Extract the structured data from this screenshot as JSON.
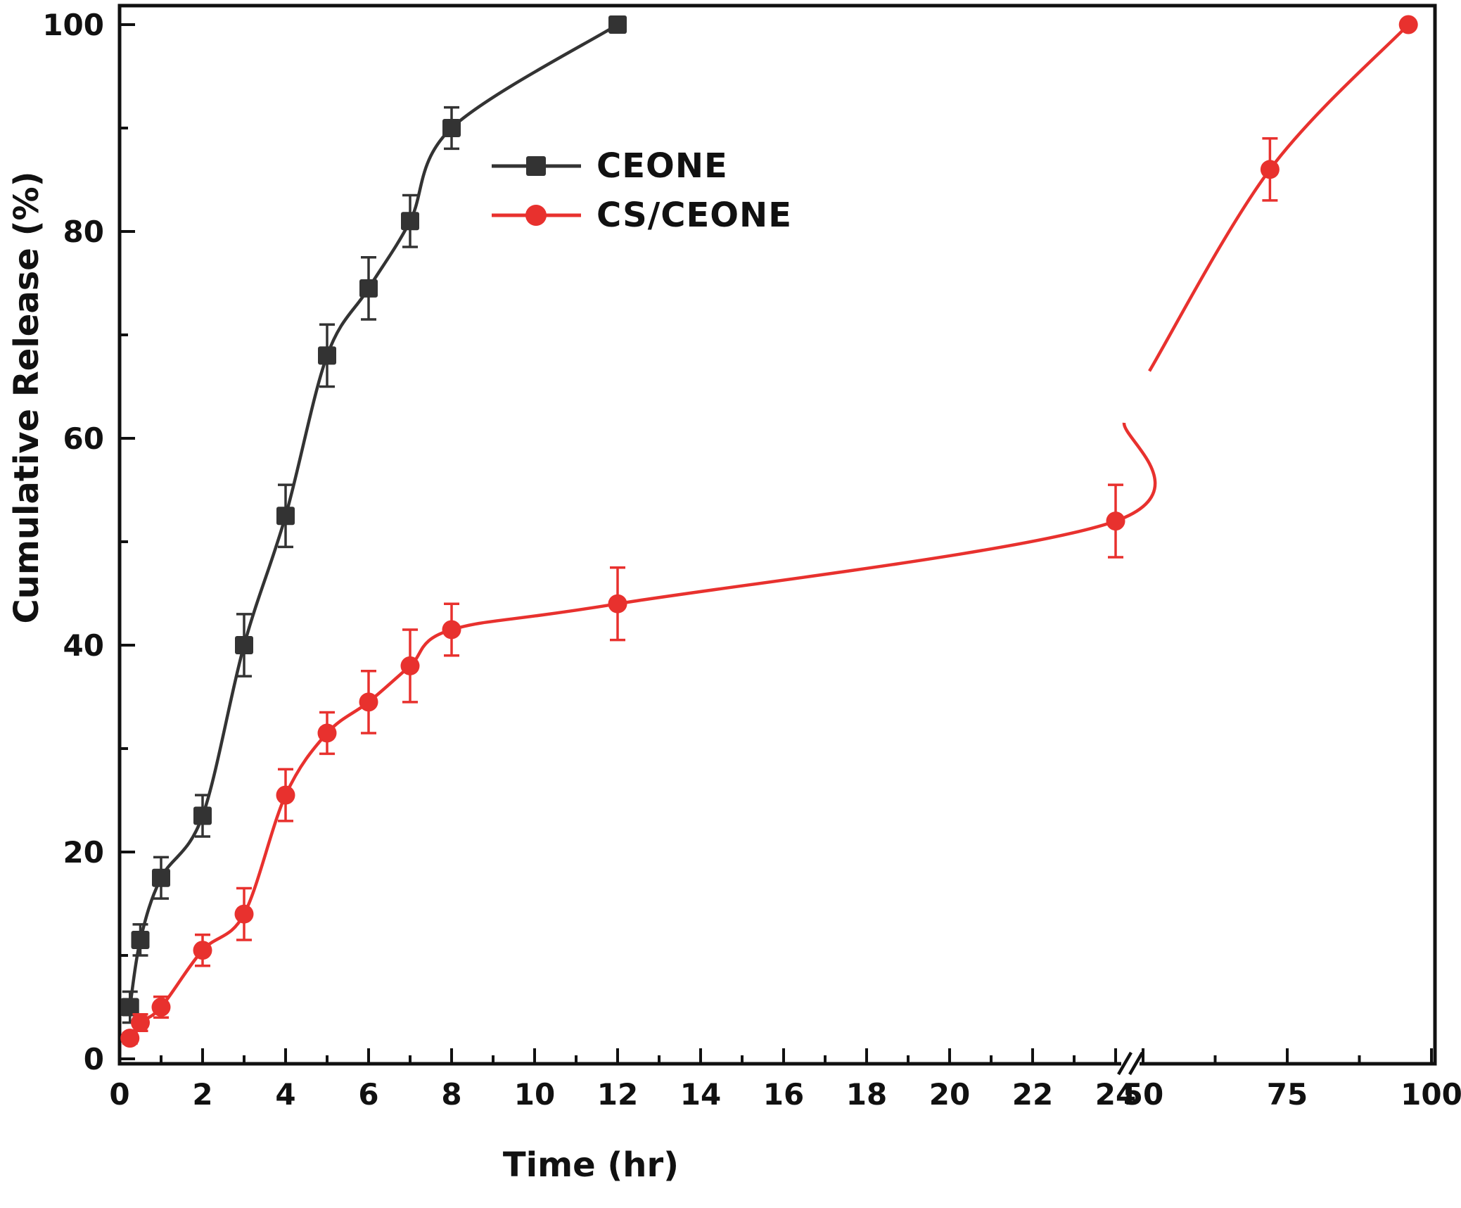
{
  "chart_data": {
    "type": "line",
    "title": "",
    "xlabel": "Time (hr)",
    "ylabel": "Cumulative Release (%)",
    "grid": false,
    "x_axis": {
      "unit": "hr",
      "break_after": 24,
      "segments": [
        {
          "min": 0,
          "max": 24,
          "major_ticks": [
            0,
            2,
            4,
            6,
            8,
            10,
            12,
            14,
            16,
            18,
            20,
            22,
            24
          ],
          "minor_step": 1
        },
        {
          "min": 50,
          "max": 100,
          "major_ticks": [
            50,
            75,
            100
          ],
          "minor_step": 12.5
        }
      ]
    },
    "y_axis": {
      "min": 0,
      "max": 100,
      "major_ticks": [
        0,
        20,
        40,
        60,
        80,
        100
      ],
      "minor_step": 10
    },
    "series": [
      {
        "name": "CEONE",
        "color": "#333333",
        "marker": "square",
        "x": [
          0.25,
          0.5,
          1,
          2,
          3,
          4,
          5,
          6,
          7,
          8,
          12
        ],
        "y": [
          5,
          11.5,
          17.5,
          23.5,
          40,
          52.5,
          68,
          74.5,
          81,
          90,
          100
        ],
        "err": [
          1.5,
          1.5,
          2,
          2,
          3,
          3,
          3,
          3,
          2.5,
          2,
          0
        ]
      },
      {
        "name": "CS/CEONE",
        "color": "#e8312e",
        "marker": "circle",
        "x": [
          0.25,
          0.5,
          1,
          2,
          3,
          4,
          5,
          6,
          7,
          8,
          12,
          24,
          72,
          96
        ],
        "y": [
          2,
          3.5,
          5,
          10.5,
          14,
          25.5,
          31.5,
          34.5,
          38,
          41.5,
          44,
          52,
          86,
          100
        ],
        "err": [
          0.5,
          0.8,
          1,
          1.5,
          2.5,
          2.5,
          2,
          3,
          3.5,
          2.5,
          3.5,
          3.5,
          3,
          0
        ]
      }
    ],
    "legend": {
      "position": "inside upper-middle-left",
      "frame": false,
      "entries": [
        "CEONE",
        "CS/CEONE"
      ]
    }
  }
}
